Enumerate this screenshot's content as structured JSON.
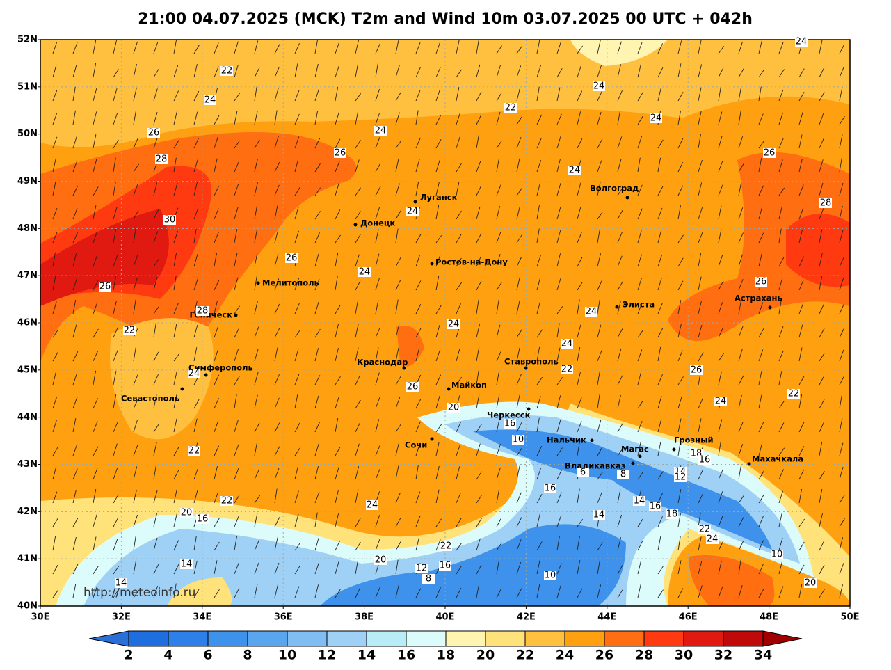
{
  "header": {
    "title": "21:00 04.07.2025 (MCK) T2m and Wind 10m 03.07.2025 00 UTC + 042h"
  },
  "map": {
    "lat_labels": [
      "52N",
      "51N",
      "50N",
      "49N",
      "48N",
      "47N",
      "46N",
      "45N",
      "44N",
      "43N",
      "42N",
      "41N",
      "40N"
    ],
    "lon_labels": [
      "30E",
      "32E",
      "34E",
      "36E",
      "38E",
      "40E",
      "42E",
      "44E",
      "46E",
      "48E",
      "50E"
    ],
    "cities": [
      "Луганск",
      "Донецк",
      "Волгоград",
      "Ростов-на-Дону",
      "Мелитополь",
      "Элиста",
      "Астрахань",
      "Геническ",
      "Симферополь",
      "Севастополь",
      "Краснодар",
      "Ставрополь",
      "Майкоп",
      "Черкесск",
      "Сочи",
      "Нальчик",
      "Магас",
      "Грозный",
      "Владикавказ",
      "Махачкала"
    ],
    "contour_labels": [
      22,
      24,
      26,
      28,
      30,
      26,
      22,
      28,
      24,
      22,
      26,
      26,
      24,
      22,
      24,
      24,
      24,
      24,
      24,
      24,
      26,
      24,
      22,
      24,
      26,
      28,
      26,
      26,
      24,
      22,
      24,
      20,
      16,
      10,
      6,
      8,
      16,
      14,
      16,
      18,
      14,
      22,
      24,
      10,
      20,
      10,
      22,
      16,
      20,
      12,
      8,
      24,
      22,
      20,
      16,
      14,
      14,
      18,
      16,
      14,
      12
    ],
    "watermark": "http://meteoinfo.ru"
  },
  "colorbar": {
    "ticks": [
      2,
      4,
      6,
      8,
      10,
      12,
      14,
      16,
      18,
      20,
      22,
      24,
      26,
      28,
      30,
      32,
      34
    ],
    "colors": [
      "#2a6fd8",
      "#1f6ee0",
      "#2e80e8",
      "#3f92ec",
      "#5aa6ee",
      "#7fbdf2",
      "#9fd0f5",
      "#b8ecf6",
      "#dcfbfb",
      "#fff5b0",
      "#ffe27a",
      "#ffc040",
      "#ffa010",
      "#ff6e10",
      "#ff3a10",
      "#e01a10",
      "#c00a0a",
      "#a00000"
    ]
  }
}
